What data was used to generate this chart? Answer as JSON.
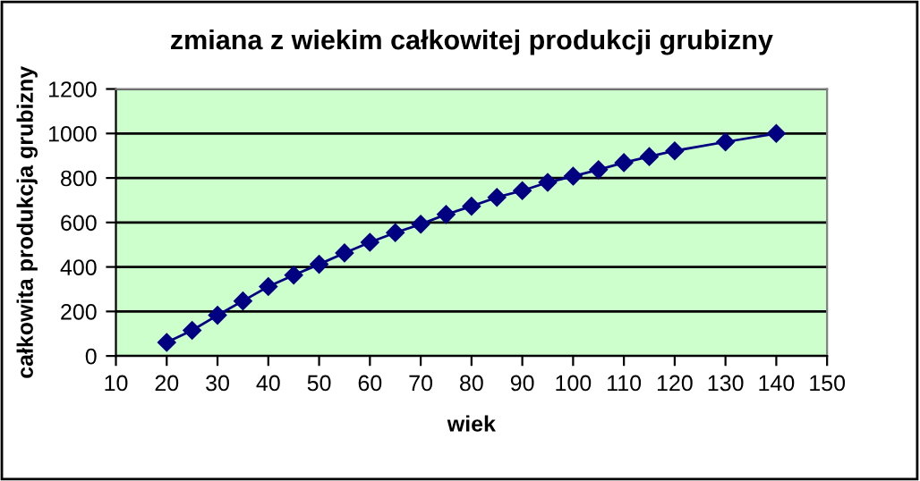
{
  "chart_data": {
    "type": "line",
    "title": "zmiana z wiekim całkowitej produkcji grubizny",
    "xlabel": "wiek",
    "ylabel": "całkowita produkcja grubizny",
    "x": [
      20,
      25,
      30,
      35,
      40,
      45,
      50,
      55,
      60,
      65,
      70,
      75,
      80,
      85,
      90,
      95,
      100,
      105,
      110,
      115,
      120,
      130,
      140
    ],
    "series": [
      {
        "color": "#000080",
        "values": [
          61,
          115,
          183,
          247,
          312,
          363,
          412,
          463,
          511,
          554,
          592,
          636,
          673,
          713,
          743,
          780,
          808,
          837,
          869,
          896,
          922,
          962,
          1000
        ]
      }
    ],
    "xlim": [
      10,
      150
    ],
    "xticks": [
      10,
      20,
      30,
      40,
      50,
      60,
      70,
      80,
      90,
      100,
      110,
      120,
      130,
      140,
      150
    ],
    "ylim": [
      0,
      1200
    ],
    "yticks": [
      0,
      200,
      400,
      600,
      800,
      1000,
      1200
    ],
    "grid": "y",
    "legend": false,
    "marker": "diamond",
    "line_style": "solid"
  }
}
